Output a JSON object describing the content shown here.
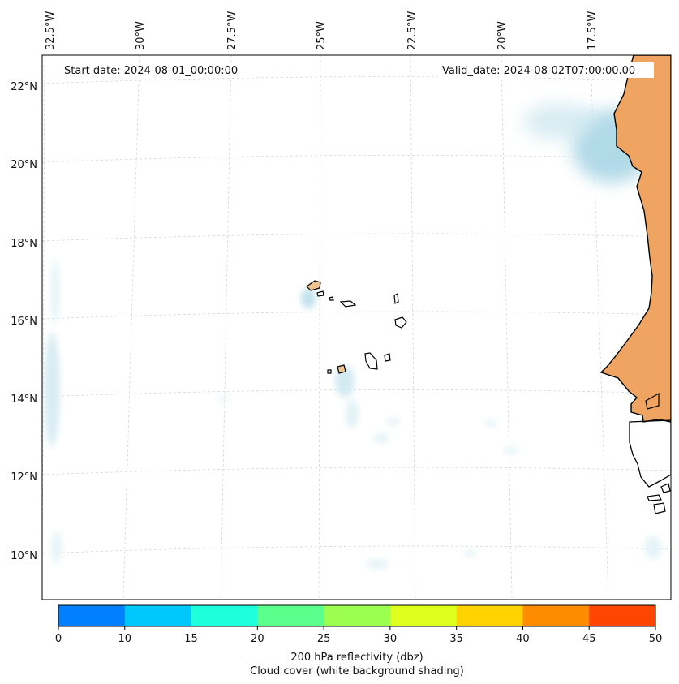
{
  "map": {
    "start_date": "Start date: 2024-08-01_00:00:00",
    "valid_date": "Valid_date: 2024-08-02T07:00:00.00",
    "lon_labels": [
      "32.5°W",
      "30°W",
      "27.5°W",
      "25°W",
      "22.5°W",
      "20°W",
      "17.5°W"
    ],
    "lat_labels": [
      "22°N",
      "20°N",
      "18°N",
      "16°N",
      "14°N",
      "12°N",
      "10°N"
    ],
    "land_color": "#f0a462",
    "cloud_color": "#a9d6e5",
    "coast_color": "#000000",
    "grid_color": "#cfcfcf"
  },
  "colorbar": {
    "label_line1": "200 hPa reflectivity (dbz)",
    "label_line2": "Cloud cover (white background shading)",
    "ticks": [
      "0",
      "10",
      "15",
      "20",
      "25",
      "30",
      "35",
      "40",
      "45",
      "50"
    ],
    "colors": [
      "#0080ff",
      "#00c8ff",
      "#1effdc",
      "#5aff8c",
      "#9cff50",
      "#dcff1e",
      "#ffd200",
      "#ff8c00",
      "#ff4600"
    ]
  }
}
